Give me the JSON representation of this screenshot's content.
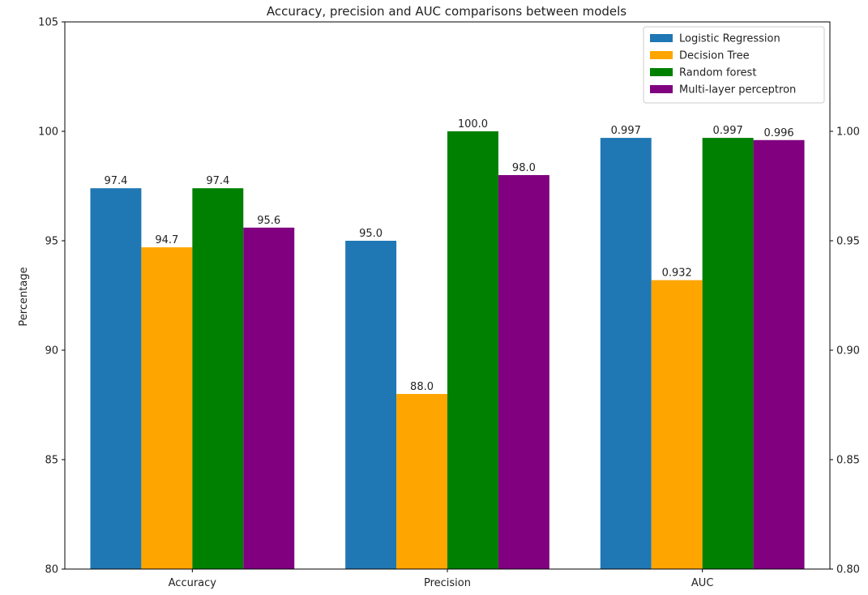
{
  "chart_data": {
    "type": "bar",
    "title": "Accuracy, precision and AUC comparisons between models",
    "ylabel": "Percentage",
    "xlabel": "",
    "categories": [
      "Accuracy",
      "Precision",
      "AUC"
    ],
    "ylim": [
      80,
      105
    ],
    "yticks": [
      "80",
      "85",
      "90",
      "95",
      "100",
      "105"
    ],
    "ylim_right": [
      0.8,
      1.05
    ],
    "yticks_right": [
      "0.80",
      "0.85",
      "0.90",
      "0.95",
      "1.00"
    ],
    "grid": false,
    "legend": "top-right",
    "series": [
      {
        "name": "Logistic Regression",
        "color": "#1f77b4",
        "values": [
          97.4,
          95.0,
          0.997
        ],
        "labels": [
          "97.4",
          "95.0",
          "0.997"
        ]
      },
      {
        "name": "Decision Tree",
        "color": "#ffa500",
        "values": [
          94.7,
          88.0,
          0.932
        ],
        "labels": [
          "94.7",
          "88.0",
          "0.932"
        ]
      },
      {
        "name": "Random forest",
        "color": "#008000",
        "values": [
          97.4,
          100.0,
          0.997
        ],
        "labels": [
          "97.4",
          "100.0",
          "0.997"
        ]
      },
      {
        "name": "Multi-layer perceptron",
        "color": "#800080",
        "values": [
          95.6,
          98.0,
          0.996
        ],
        "labels": [
          "95.6",
          "98.0",
          "0.996"
        ]
      }
    ],
    "right_axis_categories": [
      "AUC"
    ]
  }
}
